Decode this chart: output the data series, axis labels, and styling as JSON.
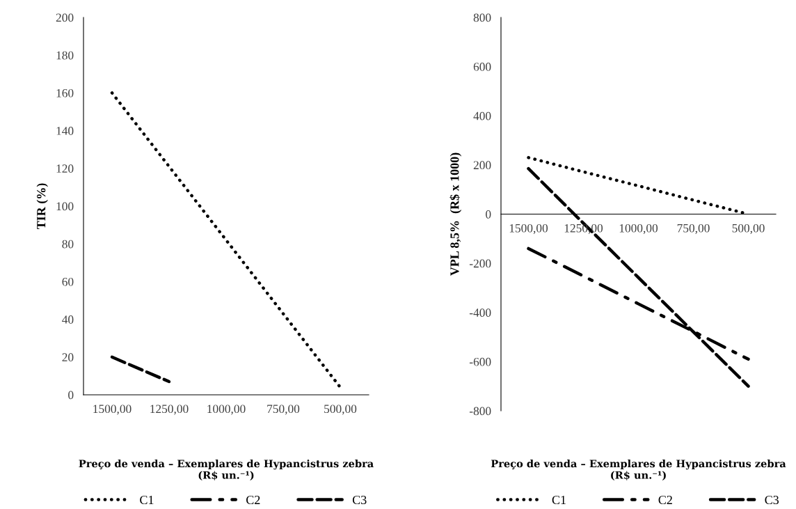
{
  "chart_data": [
    {
      "type": "line",
      "categories": [
        "1500,00",
        "1250,00",
        "1000,00",
        "750,00",
        "500,00"
      ],
      "ylabel": "TIR (%)",
      "xlabel": "Preço de venda – Exemplares de Hypancistrus zebra\n(R$ un.⁻¹)",
      "ylim": [
        0,
        200
      ],
      "yticks": [
        0,
        20,
        40,
        60,
        80,
        100,
        120,
        140,
        160,
        180,
        200
      ],
      "grid": false,
      "legend": "bottom",
      "series": [
        {
          "name": "C1",
          "color": "#000000",
          "line_style": "dotted",
          "values": [
            160,
            121,
            82,
            43,
            4
          ]
        },
        {
          "name": "C2",
          "color": "#000000",
          "line_style": "dashdot",
          "values": [
            null,
            null,
            null,
            null,
            null
          ]
        },
        {
          "name": "C3",
          "color": "#000000",
          "line_style": "dashed",
          "values": [
            20,
            7,
            null,
            null,
            null
          ]
        }
      ]
    },
    {
      "type": "line",
      "categories": [
        "1500,00",
        "1250,00",
        "1000,00",
        "750,00",
        "500,00"
      ],
      "ylabel": "VPL 8,5%  (R$ x 1000)",
      "xlabel": "Preço de venda – Exemplares de Hypancistrus zebra\n(R$ un.⁻¹)",
      "ylim": [
        -800,
        800
      ],
      "yticks": [
        -800,
        -600,
        -400,
        -200,
        0,
        200,
        400,
        600,
        800
      ],
      "grid": false,
      "legend": "bottom",
      "series": [
        {
          "name": "C1",
          "color": "#000000",
          "line_style": "dotted",
          "values": [
            230,
            172,
            115,
            57,
            0
          ]
        },
        {
          "name": "C2",
          "color": "#000000",
          "line_style": "dashdot",
          "values": [
            -140,
            -252,
            -365,
            -477,
            -590
          ]
        },
        {
          "name": "C3",
          "color": "#000000",
          "line_style": "dashed",
          "values": [
            185,
            -37,
            -258,
            -479,
            -700
          ]
        }
      ]
    }
  ]
}
